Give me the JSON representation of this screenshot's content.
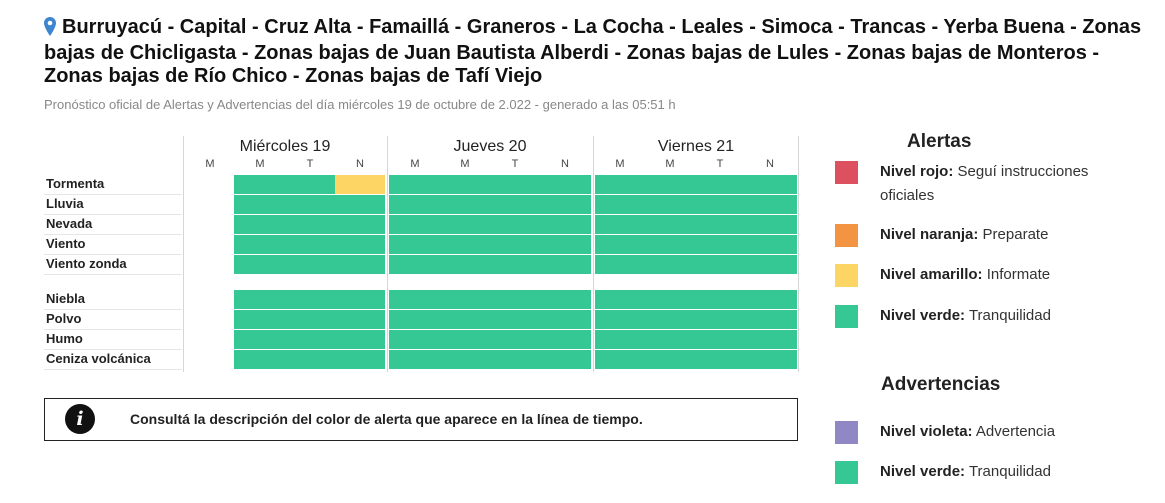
{
  "header": {
    "title": "Burruyacú - Capital - Cruz Alta - Famaillá - Graneros - La Cocha - Leales - Simoca - Trancas - Yerba Buena - Zonas bajas de Chicligasta - Zonas bajas de Juan Bautista Alberdi - Zonas bajas de Lules - Zonas bajas de Monteros - Zonas bajas de Río Chico - Zonas bajas de Tafí Viejo",
    "subtitle": "Pronóstico oficial de Alertas y Advertencias del día miércoles 19 de octubre de 2.022 - generado a las 05:51 h",
    "pin_icon": "map-pin-icon"
  },
  "timeline": {
    "days": [
      {
        "name": "Miércoles 19",
        "periods": [
          "M",
          "M",
          "T",
          "N"
        ]
      },
      {
        "name": "Jueves 20",
        "periods": [
          "M",
          "M",
          "T",
          "N"
        ]
      },
      {
        "name": "Viernes 21",
        "periods": [
          "M",
          "M",
          "T",
          "N"
        ]
      }
    ],
    "rows": [
      {
        "label": "Tormenta",
        "levels": [
          [
            null,
            "verde",
            "verde",
            "amarillo"
          ],
          [
            "verde",
            "verde",
            "verde",
            "verde"
          ],
          [
            "verde",
            "verde",
            "verde",
            "verde"
          ]
        ]
      },
      {
        "label": "Lluvia",
        "levels": [
          [
            null,
            "verde",
            "verde",
            "verde"
          ],
          [
            "verde",
            "verde",
            "verde",
            "verde"
          ],
          [
            "verde",
            "verde",
            "verde",
            "verde"
          ]
        ]
      },
      {
        "label": "Nevada",
        "levels": [
          [
            null,
            "verde",
            "verde",
            "verde"
          ],
          [
            "verde",
            "verde",
            "verde",
            "verde"
          ],
          [
            "verde",
            "verde",
            "verde",
            "verde"
          ]
        ]
      },
      {
        "label": "Viento",
        "levels": [
          [
            null,
            "verde",
            "verde",
            "verde"
          ],
          [
            "verde",
            "verde",
            "verde",
            "verde"
          ],
          [
            "verde",
            "verde",
            "verde",
            "verde"
          ]
        ]
      },
      {
        "label": "Viento zonda",
        "levels": [
          [
            null,
            "verde",
            "verde",
            "verde"
          ],
          [
            "verde",
            "verde",
            "verde",
            "verde"
          ],
          [
            "verde",
            "verde",
            "verde",
            "verde"
          ]
        ]
      },
      {
        "label": "Niebla",
        "levels": [
          [
            null,
            "verde",
            "verde",
            "verde"
          ],
          [
            "verde",
            "verde",
            "verde",
            "verde"
          ],
          [
            "verde",
            "verde",
            "verde",
            "verde"
          ]
        ]
      },
      {
        "label": "Polvo",
        "levels": [
          [
            null,
            "verde",
            "verde",
            "verde"
          ],
          [
            "verde",
            "verde",
            "verde",
            "verde"
          ],
          [
            "verde",
            "verde",
            "verde",
            "verde"
          ]
        ]
      },
      {
        "label": "Humo",
        "levels": [
          [
            null,
            "verde",
            "verde",
            "verde"
          ],
          [
            "verde",
            "verde",
            "verde",
            "verde"
          ],
          [
            "verde",
            "verde",
            "verde",
            "verde"
          ]
        ]
      },
      {
        "label": "Ceniza volcánica",
        "levels": [
          [
            null,
            "verde",
            "verde",
            "verde"
          ],
          [
            "verde",
            "verde",
            "verde",
            "verde"
          ],
          [
            "verde",
            "verde",
            "verde",
            "verde"
          ]
        ]
      }
    ]
  },
  "info": {
    "icon": "info-icon",
    "icon_glyph": "i",
    "text": "Consultá la descripción del color de alerta que aparece en la línea de tiempo."
  },
  "legend": {
    "alertas_title": "Alertas",
    "alertas": [
      {
        "level": "Nivel rojo:",
        "desc": "Seguí instrucciones oficiales",
        "color": "#dc5060"
      },
      {
        "level": "Nivel naranja:",
        "desc": "Preparate",
        "color": "#f39443"
      },
      {
        "level": "Nivel amarillo:",
        "desc": "Informate",
        "color": "#fdd564"
      },
      {
        "level": "Nivel verde:",
        "desc": "Tranquilidad",
        "color": "#35c794"
      }
    ],
    "advertencias_title": "Advertencias",
    "advertencias": [
      {
        "level": "Nivel violeta:",
        "desc": "Advertencia",
        "color": "#9088c5"
      },
      {
        "level": "Nivel verde:",
        "desc": "Tranquilidad",
        "color": "#35c794"
      }
    ]
  },
  "colors": {
    "verde": "#35c794",
    "amarillo": "#fdd564",
    "naranja": "#f39443",
    "rojo": "#dc5060",
    "violeta": "#9088c5",
    "pin": "#3d85d0"
  }
}
